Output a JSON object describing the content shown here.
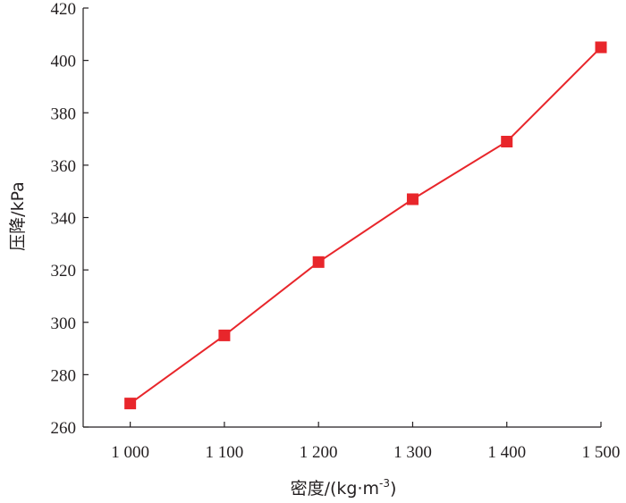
{
  "chart_data": {
    "type": "line",
    "title": "",
    "xlabel": "密度/(kg·m",
    "xlabel_sup": "-3",
    "xlabel_close": ")",
    "ylabel": "压降/kPa",
    "x": [
      1000,
      1100,
      1200,
      1300,
      1400,
      1500
    ],
    "xtick_labels": [
      "1 000",
      "1 100",
      "1 200",
      "1 300",
      "1 400",
      "1 500"
    ],
    "xlim": [
      950,
      1500
    ],
    "ylim": [
      260,
      420
    ],
    "yticks": [
      260,
      280,
      300,
      320,
      340,
      360,
      380,
      400,
      420
    ],
    "ytick_labels": [
      "260",
      "280",
      "300",
      "320",
      "340",
      "360",
      "380",
      "400",
      "420"
    ],
    "grid": false,
    "series": [
      {
        "values": [
          269,
          295,
          323,
          347,
          369,
          405
        ],
        "color": "#e8262b",
        "marker": "square"
      }
    ]
  }
}
